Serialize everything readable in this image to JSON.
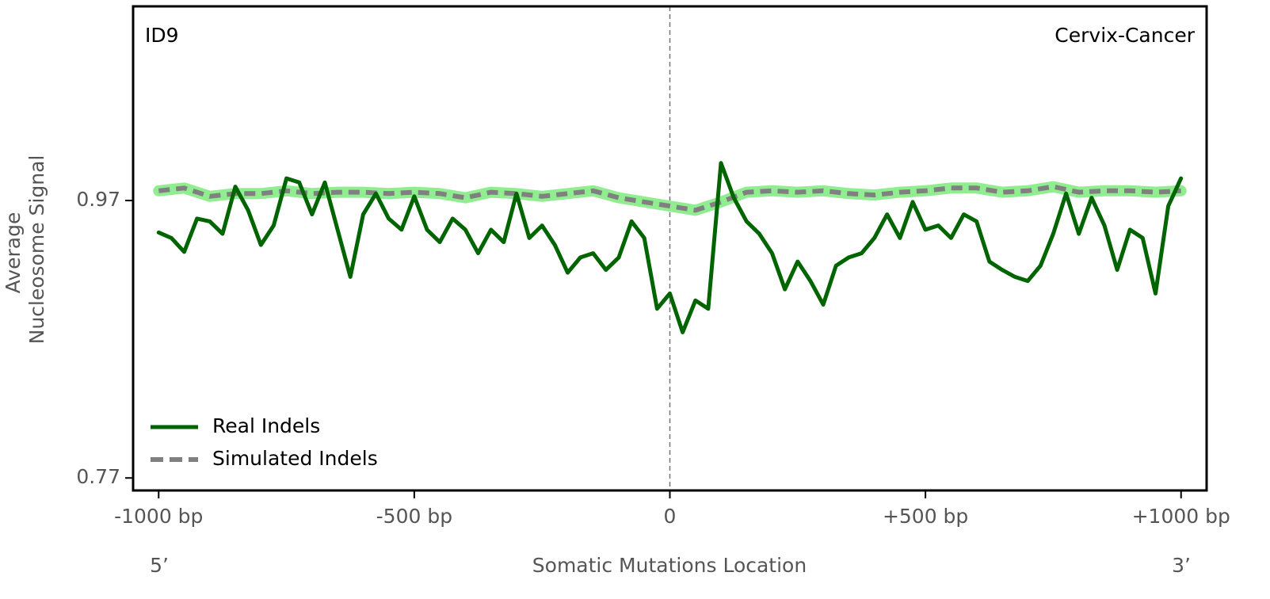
{
  "chart_data": {
    "type": "line",
    "title": "ID9",
    "subtitle": "Cervix-Cancer",
    "ylabel": [
      "Average",
      "Nucleosome Signal"
    ],
    "xlabel": "Somatic Mutations Location",
    "annotations": [
      "5’",
      "3’"
    ],
    "vline": 0,
    "xlim": [
      -1050,
      1050
    ],
    "ylim": [
      0.761,
      1.11
    ],
    "xticks": [
      {
        "value": -1000,
        "label": "-1000 bp"
      },
      {
        "value": -500,
        "label": "-500 bp"
      },
      0,
      {
        "value": 500,
        "label": "+500 bp"
      },
      {
        "value": 1000,
        "label": "+1000 bp"
      }
    ],
    "yticks": [
      0.97,
      0.77
    ],
    "legend": "lower left",
    "series": [
      {
        "name": "Real Indels",
        "color": "#006400",
        "style": "solid",
        "x": [
          -1000,
          -975,
          -950,
          -925,
          -900,
          -875,
          -850,
          -825,
          -800,
          -775,
          -750,
          -725,
          -700,
          -675,
          -650,
          -625,
          -600,
          -575,
          -550,
          -525,
          -500,
          -475,
          -450,
          -425,
          -400,
          -375,
          -350,
          -325,
          -300,
          -275,
          -250,
          -225,
          -200,
          -175,
          -150,
          -125,
          -100,
          -75,
          -50,
          -25,
          0,
          25,
          50,
          75,
          100,
          125,
          150,
          175,
          200,
          225,
          250,
          275,
          300,
          325,
          350,
          375,
          400,
          425,
          450,
          475,
          500,
          525,
          550,
          575,
          600,
          625,
          650,
          675,
          700,
          725,
          750,
          775,
          800,
          825,
          850,
          875,
          900,
          925,
          950,
          975,
          1000
        ],
        "values": [
          0.947,
          0.943,
          0.933,
          0.957,
          0.955,
          0.946,
          0.98,
          0.963,
          0.938,
          0.952,
          0.986,
          0.983,
          0.96,
          0.983,
          0.949,
          0.915,
          0.96,
          0.975,
          0.957,
          0.949,
          0.973,
          0.949,
          0.94,
          0.957,
          0.949,
          0.932,
          0.949,
          0.94,
          0.975,
          0.943,
          0.952,
          0.938,
          0.918,
          0.929,
          0.932,
          0.92,
          0.929,
          0.955,
          0.943,
          0.892,
          0.903,
          0.875,
          0.898,
          0.892,
          0.997,
          0.972,
          0.955,
          0.946,
          0.932,
          0.906,
          0.926,
          0.912,
          0.895,
          0.923,
          0.929,
          0.932,
          0.943,
          0.96,
          0.943,
          0.969,
          0.949,
          0.952,
          0.943,
          0.96,
          0.955,
          0.926,
          0.92,
          0.915,
          0.912,
          0.923,
          0.946,
          0.975,
          0.946,
          0.972,
          0.952,
          0.92,
          0.949,
          0.943,
          0.903,
          0.966,
          0.986
        ]
      },
      {
        "name": "Simulated Indels",
        "color": "#808080",
        "band_color": "#90ee90",
        "style": "dashed",
        "x": [
          -1000,
          -950,
          -900,
          -850,
          -800,
          -750,
          -700,
          -650,
          -600,
          -550,
          -500,
          -450,
          -400,
          -350,
          -300,
          -250,
          -200,
          -150,
          -100,
          -50,
          0,
          50,
          100,
          150,
          200,
          250,
          300,
          350,
          400,
          450,
          500,
          550,
          600,
          650,
          700,
          750,
          800,
          850,
          900,
          950,
          1000
        ],
        "values": [
          0.977,
          0.979,
          0.973,
          0.975,
          0.975,
          0.977,
          0.975,
          0.976,
          0.976,
          0.975,
          0.976,
          0.975,
          0.972,
          0.976,
          0.975,
          0.973,
          0.975,
          0.977,
          0.972,
          0.969,
          0.966,
          0.963,
          0.969,
          0.976,
          0.977,
          0.976,
          0.977,
          0.975,
          0.974,
          0.976,
          0.977,
          0.979,
          0.979,
          0.976,
          0.977,
          0.98,
          0.976,
          0.977,
          0.977,
          0.976,
          0.977
        ]
      }
    ]
  }
}
